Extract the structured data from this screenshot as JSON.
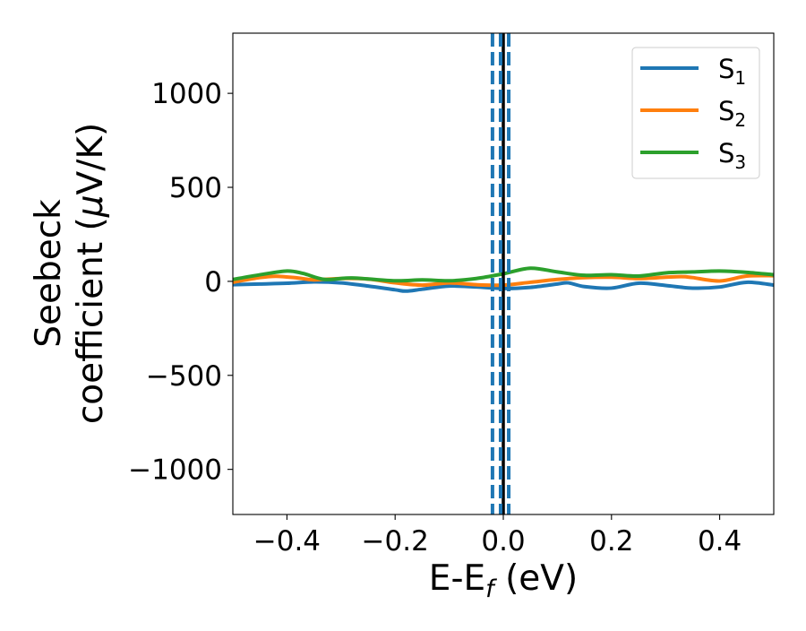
{
  "chart_data": {
    "type": "line",
    "xlabel": "E-E",
    "xlabel_sub": "f",
    "xlabel_unit": " (eV)",
    "ylabel_line1": "Seebeck",
    "ylabel_line2": "coefficient  (",
    "ylabel_mu": "μ",
    "ylabel_unit": "V/K)",
    "xlim": [
      -0.5,
      0.5
    ],
    "ylim": [
      -1240,
      1320
    ],
    "xticks": [
      -0.4,
      -0.2,
      0.0,
      0.2,
      0.4
    ],
    "xtick_labels": [
      "−0.4",
      "−0.2",
      "0.0",
      "0.2",
      "0.4"
    ],
    "yticks": [
      -1000,
      -500,
      0,
      500,
      1000
    ],
    "ytick_labels": [
      "−1000",
      "−500",
      "0",
      "500",
      "1000"
    ],
    "grid": false,
    "legend_position": "top-right",
    "vlines": [
      {
        "x": 0.0,
        "style": "solid",
        "color": "#000000"
      },
      {
        "x": -0.02,
        "style": "dashed",
        "color": "#1f77b4"
      },
      {
        "x": -0.005,
        "style": "dashed",
        "color": "#1f77b4"
      },
      {
        "x": 0.01,
        "style": "dashed",
        "color": "#1f77b4"
      }
    ],
    "series": [
      {
        "name": "S",
        "name_sub": "1",
        "color": "#1f77b4",
        "x": [
          -0.5,
          -0.45,
          -0.4,
          -0.35,
          -0.3,
          -0.25,
          -0.2,
          -0.18,
          -0.15,
          -0.1,
          -0.05,
          0.0,
          0.05,
          0.1,
          0.12,
          0.15,
          0.2,
          0.25,
          0.3,
          0.35,
          0.4,
          0.45,
          0.5
        ],
        "y": [
          -18,
          -14,
          -10,
          -3,
          -8,
          -25,
          -45,
          -52,
          -42,
          -25,
          -30,
          -38,
          -32,
          -14,
          -8,
          -28,
          -36,
          -10,
          -22,
          -36,
          -30,
          -5,
          -20
        ]
      },
      {
        "name": "S",
        "name_sub": "2",
        "color": "#ff7f0e",
        "x": [
          -0.5,
          -0.45,
          -0.42,
          -0.38,
          -0.35,
          -0.3,
          -0.25,
          -0.2,
          -0.15,
          -0.1,
          -0.05,
          0.0,
          0.05,
          0.1,
          0.15,
          0.2,
          0.25,
          0.3,
          0.33,
          0.35,
          0.4,
          0.45,
          0.5
        ],
        "y": [
          -5,
          20,
          27,
          18,
          8,
          15,
          12,
          -8,
          -20,
          -8,
          -18,
          -20,
          -5,
          10,
          20,
          22,
          15,
          22,
          25,
          20,
          2,
          28,
          30
        ]
      },
      {
        "name": "S",
        "name_sub": "3",
        "color": "#2ca02c",
        "x": [
          -0.5,
          -0.45,
          -0.4,
          -0.37,
          -0.33,
          -0.28,
          -0.2,
          -0.15,
          -0.1,
          -0.05,
          0.0,
          0.05,
          0.1,
          0.15,
          0.2,
          0.25,
          0.3,
          0.35,
          0.4,
          0.45,
          0.5
        ],
        "y": [
          10,
          35,
          55,
          42,
          10,
          18,
          3,
          8,
          3,
          15,
          40,
          70,
          50,
          32,
          35,
          28,
          45,
          50,
          55,
          48,
          35
        ]
      }
    ]
  }
}
